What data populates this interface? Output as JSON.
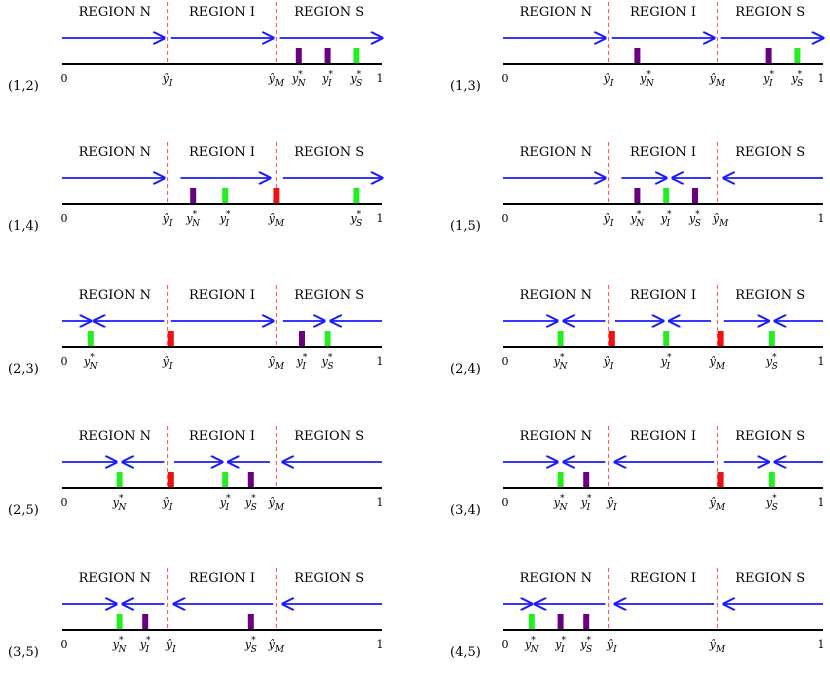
{
  "region_labels": [
    "REGION N",
    "REGION I",
    "REGION S"
  ],
  "axis": {
    "min_label": "0",
    "max_label": "1"
  },
  "colors": {
    "arrow": "#1a1aff",
    "divider": "#ff4d4d",
    "axis": "#000000",
    "green": "#22ee22",
    "purple": "#6a0080",
    "red": "#ee1111"
  },
  "panels": [
    {
      "case": "(1,2)",
      "yI": 0.33,
      "yM": 0.67,
      "arrows": [
        {
          "from": 0.0,
          "to": 0.32,
          "dir": "right"
        },
        {
          "from": 0.34,
          "to": 0.66,
          "dir": "right"
        },
        {
          "from": 0.68,
          "to": 1.0,
          "dir": "right"
        }
      ],
      "markers": [
        {
          "x": 0.74,
          "color": "purple"
        },
        {
          "x": 0.83,
          "color": "purple"
        },
        {
          "x": 0.92,
          "color": "green"
        }
      ],
      "labels": [
        {
          "x": 0.0,
          "text": "0"
        },
        {
          "x": 0.33,
          "text": "ŷ",
          "sub": "I"
        },
        {
          "x": 0.67,
          "text": "ŷ",
          "sub": "M"
        },
        {
          "x": 0.74,
          "text": "y",
          "sup": "*",
          "sub": "N"
        },
        {
          "x": 0.83,
          "text": "y",
          "sup": "*",
          "sub": "I"
        },
        {
          "x": 0.92,
          "text": "y",
          "sup": "*",
          "sub": "S"
        },
        {
          "x": 1.0,
          "text": "1"
        }
      ]
    },
    {
      "case": "(1,3)",
      "yI": 0.33,
      "yM": 0.67,
      "arrows": [
        {
          "from": 0.0,
          "to": 0.32,
          "dir": "right"
        },
        {
          "from": 0.34,
          "to": 0.66,
          "dir": "right"
        },
        {
          "from": 0.68,
          "to": 1.0,
          "dir": "right"
        }
      ],
      "markers": [
        {
          "x": 0.42,
          "color": "purple"
        },
        {
          "x": 0.83,
          "color": "purple"
        },
        {
          "x": 0.92,
          "color": "green"
        }
      ],
      "labels": [
        {
          "x": 0.0,
          "text": "0"
        },
        {
          "x": 0.33,
          "text": "ŷ",
          "sub": "I"
        },
        {
          "x": 0.45,
          "text": "y",
          "sup": "*",
          "sub": "N"
        },
        {
          "x": 0.67,
          "text": "ŷ",
          "sub": "M"
        },
        {
          "x": 0.83,
          "text": "y",
          "sup": "*",
          "sub": "I"
        },
        {
          "x": 0.92,
          "text": "y",
          "sup": "*",
          "sub": "S"
        },
        {
          "x": 1.0,
          "text": "1"
        }
      ]
    },
    {
      "case": "(1,4)",
      "yI": 0.33,
      "yM": 0.67,
      "arrows": [
        {
          "from": 0.0,
          "to": 0.32,
          "dir": "right"
        },
        {
          "from": 0.37,
          "to": 0.65,
          "dir": "right"
        },
        {
          "from": 0.69,
          "to": 1.0,
          "dir": "right"
        }
      ],
      "markers": [
        {
          "x": 0.41,
          "color": "purple"
        },
        {
          "x": 0.51,
          "color": "green"
        },
        {
          "x": 0.67,
          "color": "red"
        },
        {
          "x": 0.92,
          "color": "green"
        }
      ],
      "labels": [
        {
          "x": 0.0,
          "text": "0"
        },
        {
          "x": 0.33,
          "text": "ŷ",
          "sub": "I"
        },
        {
          "x": 0.41,
          "text": "y",
          "sup": "*",
          "sub": "N"
        },
        {
          "x": 0.51,
          "text": "y",
          "sup": "*",
          "sub": "I"
        },
        {
          "x": 0.67,
          "text": "ŷ",
          "sub": "M"
        },
        {
          "x": 0.92,
          "text": "y",
          "sup": "*",
          "sub": "S"
        },
        {
          "x": 1.0,
          "text": "1"
        }
      ]
    },
    {
      "case": "(1,5)",
      "yI": 0.33,
      "yM": 0.67,
      "arrows": [
        {
          "from": 0.0,
          "to": 0.32,
          "dir": "right"
        },
        {
          "from": 0.37,
          "to": 0.51,
          "dir": "right"
        },
        {
          "from": 0.53,
          "to": 0.65,
          "dir": "left"
        },
        {
          "from": 0.69,
          "to": 1.0,
          "dir": "left"
        }
      ],
      "markers": [
        {
          "x": 0.42,
          "color": "purple"
        },
        {
          "x": 0.51,
          "color": "green"
        },
        {
          "x": 0.6,
          "color": "purple"
        }
      ],
      "labels": [
        {
          "x": 0.0,
          "text": "0"
        },
        {
          "x": 0.33,
          "text": "ŷ",
          "sub": "I"
        },
        {
          "x": 0.42,
          "text": "y",
          "sup": "*",
          "sub": "N"
        },
        {
          "x": 0.51,
          "text": "y",
          "sup": "*",
          "sub": "I"
        },
        {
          "x": 0.6,
          "text": "y",
          "sup": "*",
          "sub": "S"
        },
        {
          "x": 0.68,
          "text": "ŷ",
          "sub": "M"
        },
        {
          "x": 1.0,
          "text": "1"
        }
      ]
    },
    {
      "case": "(2,3)",
      "yI": 0.33,
      "yM": 0.67,
      "arrows": [
        {
          "from": 0.0,
          "to": 0.09,
          "dir": "right"
        },
        {
          "from": 0.1,
          "to": 0.32,
          "dir": "left"
        },
        {
          "from": 0.34,
          "to": 0.66,
          "dir": "right"
        },
        {
          "from": 0.69,
          "to": 0.82,
          "dir": "right"
        },
        {
          "from": 0.84,
          "to": 1.0,
          "dir": "left"
        }
      ],
      "markers": [
        {
          "x": 0.09,
          "color": "green"
        },
        {
          "x": 0.34,
          "color": "red"
        },
        {
          "x": 0.75,
          "color": "purple"
        },
        {
          "x": 0.83,
          "color": "green"
        }
      ],
      "labels": [
        {
          "x": 0.0,
          "text": "0"
        },
        {
          "x": 0.09,
          "text": "y",
          "sup": "*",
          "sub": "N"
        },
        {
          "x": 0.33,
          "text": "ŷ",
          "sub": "I"
        },
        {
          "x": 0.67,
          "text": "ŷ",
          "sub": "M"
        },
        {
          "x": 0.75,
          "text": "y",
          "sup": "*",
          "sub": "I"
        },
        {
          "x": 0.83,
          "text": "y",
          "sup": "*",
          "sub": "S"
        },
        {
          "x": 1.0,
          "text": "1"
        }
      ]
    },
    {
      "case": "(2,4)",
      "yI": 0.33,
      "yM": 0.67,
      "arrows": [
        {
          "from": 0.0,
          "to": 0.17,
          "dir": "right"
        },
        {
          "from": 0.19,
          "to": 0.32,
          "dir": "left"
        },
        {
          "from": 0.35,
          "to": 0.5,
          "dir": "right"
        },
        {
          "from": 0.52,
          "to": 0.65,
          "dir": "left"
        },
        {
          "from": 0.69,
          "to": 0.83,
          "dir": "right"
        },
        {
          "from": 0.85,
          "to": 1.0,
          "dir": "left"
        }
      ],
      "markers": [
        {
          "x": 0.18,
          "color": "green"
        },
        {
          "x": 0.34,
          "color": "red"
        },
        {
          "x": 0.51,
          "color": "green"
        },
        {
          "x": 0.68,
          "color": "red"
        },
        {
          "x": 0.84,
          "color": "green"
        }
      ],
      "labels": [
        {
          "x": 0.0,
          "text": "0"
        },
        {
          "x": 0.18,
          "text": "y",
          "sup": "*",
          "sub": "N"
        },
        {
          "x": 0.33,
          "text": "ŷ",
          "sub": "I"
        },
        {
          "x": 0.51,
          "text": "y",
          "sup": "*",
          "sub": "I"
        },
        {
          "x": 0.67,
          "text": "ŷ",
          "sub": "M"
        },
        {
          "x": 0.84,
          "text": "y",
          "sup": "*",
          "sub": "S"
        },
        {
          "x": 1.0,
          "text": "1"
        }
      ]
    },
    {
      "case": "(2,5)",
      "yI": 0.33,
      "yM": 0.67,
      "arrows": [
        {
          "from": 0.0,
          "to": 0.17,
          "dir": "right"
        },
        {
          "from": 0.19,
          "to": 0.32,
          "dir": "left"
        },
        {
          "from": 0.35,
          "to": 0.5,
          "dir": "right"
        },
        {
          "from": 0.52,
          "to": 0.65,
          "dir": "left"
        },
        {
          "from": 0.69,
          "to": 1.0,
          "dir": "left"
        }
      ],
      "markers": [
        {
          "x": 0.18,
          "color": "green"
        },
        {
          "x": 0.34,
          "color": "red"
        },
        {
          "x": 0.51,
          "color": "green"
        },
        {
          "x": 0.59,
          "color": "purple"
        }
      ],
      "labels": [
        {
          "x": 0.0,
          "text": "0"
        },
        {
          "x": 0.18,
          "text": "y",
          "sup": "*",
          "sub": "N"
        },
        {
          "x": 0.33,
          "text": "ŷ",
          "sub": "I"
        },
        {
          "x": 0.51,
          "text": "y",
          "sup": "*",
          "sub": "I"
        },
        {
          "x": 0.59,
          "text": "y",
          "sup": "*",
          "sub": "S"
        },
        {
          "x": 0.67,
          "text": "ŷ",
          "sub": "M"
        },
        {
          "x": 1.0,
          "text": "1"
        }
      ]
    },
    {
      "case": "(3,4)",
      "yI": 0.33,
      "yM": 0.67,
      "arrows": [
        {
          "from": 0.0,
          "to": 0.17,
          "dir": "right"
        },
        {
          "from": 0.19,
          "to": 0.32,
          "dir": "left"
        },
        {
          "from": 0.35,
          "to": 0.66,
          "dir": "left"
        },
        {
          "from": 0.69,
          "to": 0.83,
          "dir": "right"
        },
        {
          "from": 0.85,
          "to": 1.0,
          "dir": "left"
        }
      ],
      "markers": [
        {
          "x": 0.18,
          "color": "green"
        },
        {
          "x": 0.26,
          "color": "purple"
        },
        {
          "x": 0.68,
          "color": "red"
        },
        {
          "x": 0.84,
          "color": "green"
        }
      ],
      "labels": [
        {
          "x": 0.0,
          "text": "0"
        },
        {
          "x": 0.18,
          "text": "y",
          "sup": "*",
          "sub": "N"
        },
        {
          "x": 0.26,
          "text": "y",
          "sup": "*",
          "sub": "I"
        },
        {
          "x": 0.34,
          "text": "ŷ",
          "sub": "I"
        },
        {
          "x": 0.67,
          "text": "ŷ",
          "sub": "M"
        },
        {
          "x": 0.84,
          "text": "y",
          "sup": "*",
          "sub": "S"
        },
        {
          "x": 1.0,
          "text": "1"
        }
      ]
    },
    {
      "case": "(3,5)",
      "yI": 0.33,
      "yM": 0.67,
      "arrows": [
        {
          "from": 0.0,
          "to": 0.17,
          "dir": "right"
        },
        {
          "from": 0.19,
          "to": 0.32,
          "dir": "left"
        },
        {
          "from": 0.35,
          "to": 0.66,
          "dir": "left"
        },
        {
          "from": 0.69,
          "to": 1.0,
          "dir": "left"
        }
      ],
      "markers": [
        {
          "x": 0.18,
          "color": "green"
        },
        {
          "x": 0.26,
          "color": "purple"
        },
        {
          "x": 0.59,
          "color": "purple"
        }
      ],
      "labels": [
        {
          "x": 0.0,
          "text": "0"
        },
        {
          "x": 0.18,
          "text": "y",
          "sup": "*",
          "sub": "N"
        },
        {
          "x": 0.26,
          "text": "y",
          "sup": "*",
          "sub": "I"
        },
        {
          "x": 0.34,
          "text": "ŷ",
          "sub": "I"
        },
        {
          "x": 0.59,
          "text": "y",
          "sup": "*",
          "sub": "S"
        },
        {
          "x": 0.67,
          "text": "ŷ",
          "sub": "M"
        },
        {
          "x": 1.0,
          "text": "1"
        }
      ]
    },
    {
      "case": "(4,5)",
      "yI": 0.33,
      "yM": 0.67,
      "arrows": [
        {
          "from": 0.0,
          "to": 0.09,
          "dir": "right"
        },
        {
          "from": 0.1,
          "to": 0.32,
          "dir": "left"
        },
        {
          "from": 0.35,
          "to": 0.66,
          "dir": "left"
        },
        {
          "from": 0.69,
          "to": 1.0,
          "dir": "left"
        }
      ],
      "markers": [
        {
          "x": 0.09,
          "color": "green"
        },
        {
          "x": 0.18,
          "color": "purple"
        },
        {
          "x": 0.26,
          "color": "purple"
        }
      ],
      "labels": [
        {
          "x": 0.0,
          "text": "0"
        },
        {
          "x": 0.09,
          "text": "y",
          "sup": "*",
          "sub": "N"
        },
        {
          "x": 0.18,
          "text": "y",
          "sup": "*",
          "sub": "I"
        },
        {
          "x": 0.26,
          "text": "y",
          "sup": "*",
          "sub": "S"
        },
        {
          "x": 0.34,
          "text": "ŷ",
          "sub": "I"
        },
        {
          "x": 0.67,
          "text": "ŷ",
          "sub": "M"
        },
        {
          "x": 1.0,
          "text": "1"
        }
      ]
    }
  ]
}
